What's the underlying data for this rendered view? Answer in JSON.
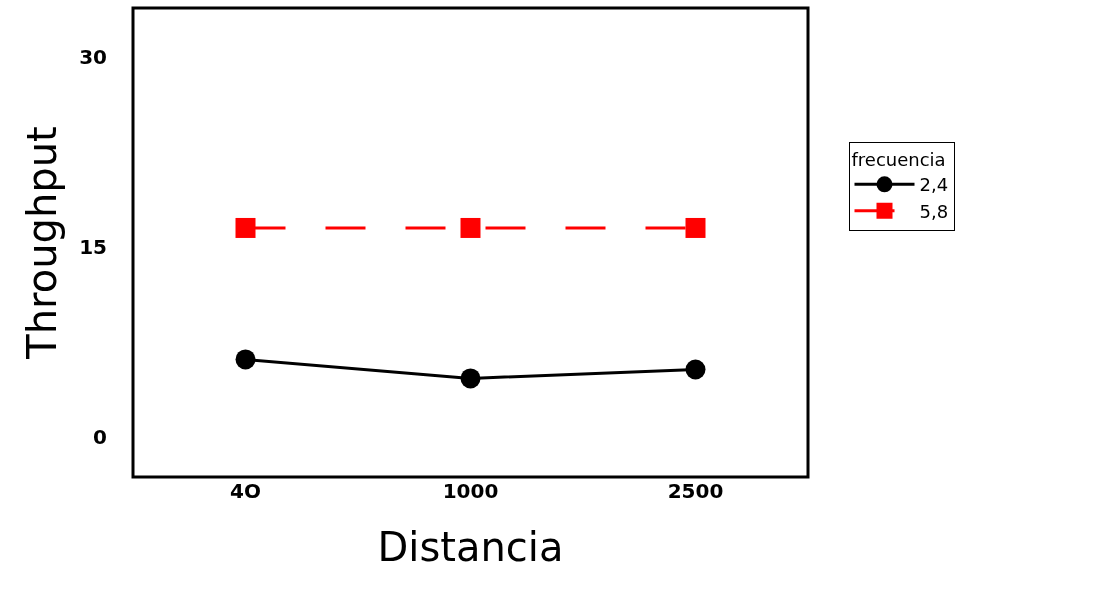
{
  "chart_data": {
    "type": "line",
    "xlabel": "Distancia",
    "ylabel": "Throughput",
    "legend_title": "frecuencia",
    "categories": [
      "4O",
      "1000",
      "2500"
    ],
    "series": [
      {
        "name": "2,4",
        "color": "#000000",
        "values": [
          6.1,
          4.6,
          5.3
        ],
        "marker": "circle",
        "line_style": "solid"
      },
      {
        "name": "5,8",
        "color": "#ff0000",
        "values": [
          16.5,
          16.5,
          16.5
        ],
        "marker": "square",
        "line_style": "dashed"
      }
    ],
    "ylim": [
      -3.2,
      33.9
    ],
    "yticks": [
      0,
      15,
      30
    ],
    "grid": false,
    "legend": "right"
  }
}
